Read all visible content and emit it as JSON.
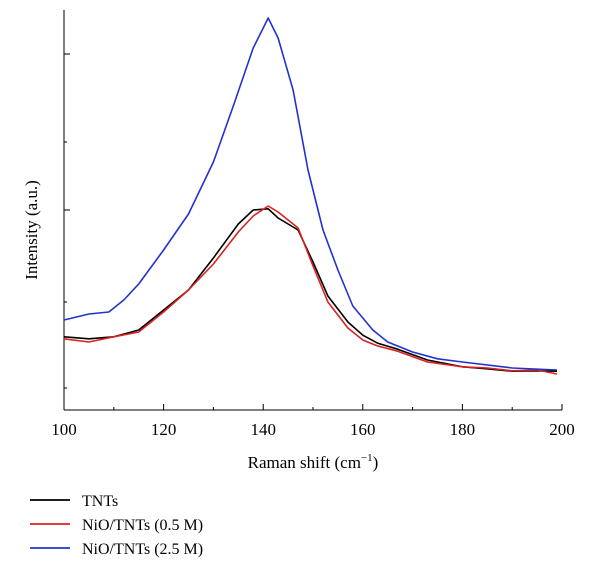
{
  "chart_data": {
    "type": "line",
    "title": "",
    "xlabel": "Raman shift (cm",
    "xlabel_sup": "−1",
    "xlabel_suffix": ")",
    "ylabel": "Intensity (a.u.)",
    "xlim": [
      100,
      200
    ],
    "ylim": [
      0,
      100
    ],
    "x_ticks": [
      100,
      120,
      140,
      160,
      180,
      200
    ],
    "x_tick_labels": [
      "100",
      "120",
      "140",
      "160",
      "180",
      "200"
    ],
    "y_tick_labels_shown": false,
    "grid": false,
    "legend_position": "bottom-left",
    "series": [
      {
        "name": "TNTs",
        "color": "#000000",
        "x": [
          100,
          105,
          110,
          115,
          120,
          125,
          130,
          135,
          138,
          141,
          143,
          147,
          150,
          153,
          157,
          160,
          163,
          167,
          173,
          180,
          185,
          190,
          195,
          199
        ],
        "y": [
          18.3,
          17.8,
          18.3,
          20.0,
          25.0,
          30.0,
          38.0,
          46.5,
          50.0,
          50.3,
          48.0,
          45.0,
          37.0,
          28.5,
          22.0,
          18.7,
          16.7,
          15.2,
          12.5,
          10.8,
          10.3,
          9.7,
          9.8,
          9.7
        ]
      },
      {
        "name": "NiO/TNTs (0.5 M)",
        "color": "#dd2020",
        "x": [
          100,
          105,
          110,
          115,
          120,
          125,
          130,
          135,
          138,
          141,
          143,
          147,
          150,
          153,
          157,
          160,
          163,
          167,
          173,
          180,
          185,
          190,
          195,
          199
        ],
        "y": [
          17.8,
          17.0,
          18.3,
          19.5,
          24.5,
          30.0,
          36.5,
          44.5,
          48.5,
          51.0,
          49.5,
          45.5,
          36.0,
          27.0,
          20.5,
          17.5,
          16.0,
          14.7,
          12.0,
          10.8,
          10.5,
          9.8,
          10.0,
          9.0
        ]
      },
      {
        "name": "NiO/TNTs (2.5 M)",
        "color": "#2233cc",
        "x": [
          100,
          105,
          109,
          112,
          115,
          120,
          125,
          130,
          134,
          138,
          141,
          143,
          146,
          149,
          152,
          155,
          158,
          162,
          165,
          170,
          175,
          180,
          190,
          199
        ],
        "y": [
          22.5,
          24.0,
          24.5,
          27.5,
          31.5,
          40.0,
          49.0,
          62.0,
          76.0,
          90.5,
          98.0,
          93.0,
          80.0,
          60.0,
          45.0,
          35.0,
          26.0,
          20.0,
          17.0,
          14.5,
          12.8,
          12.0,
          10.5,
          10.0
        ]
      }
    ]
  }
}
